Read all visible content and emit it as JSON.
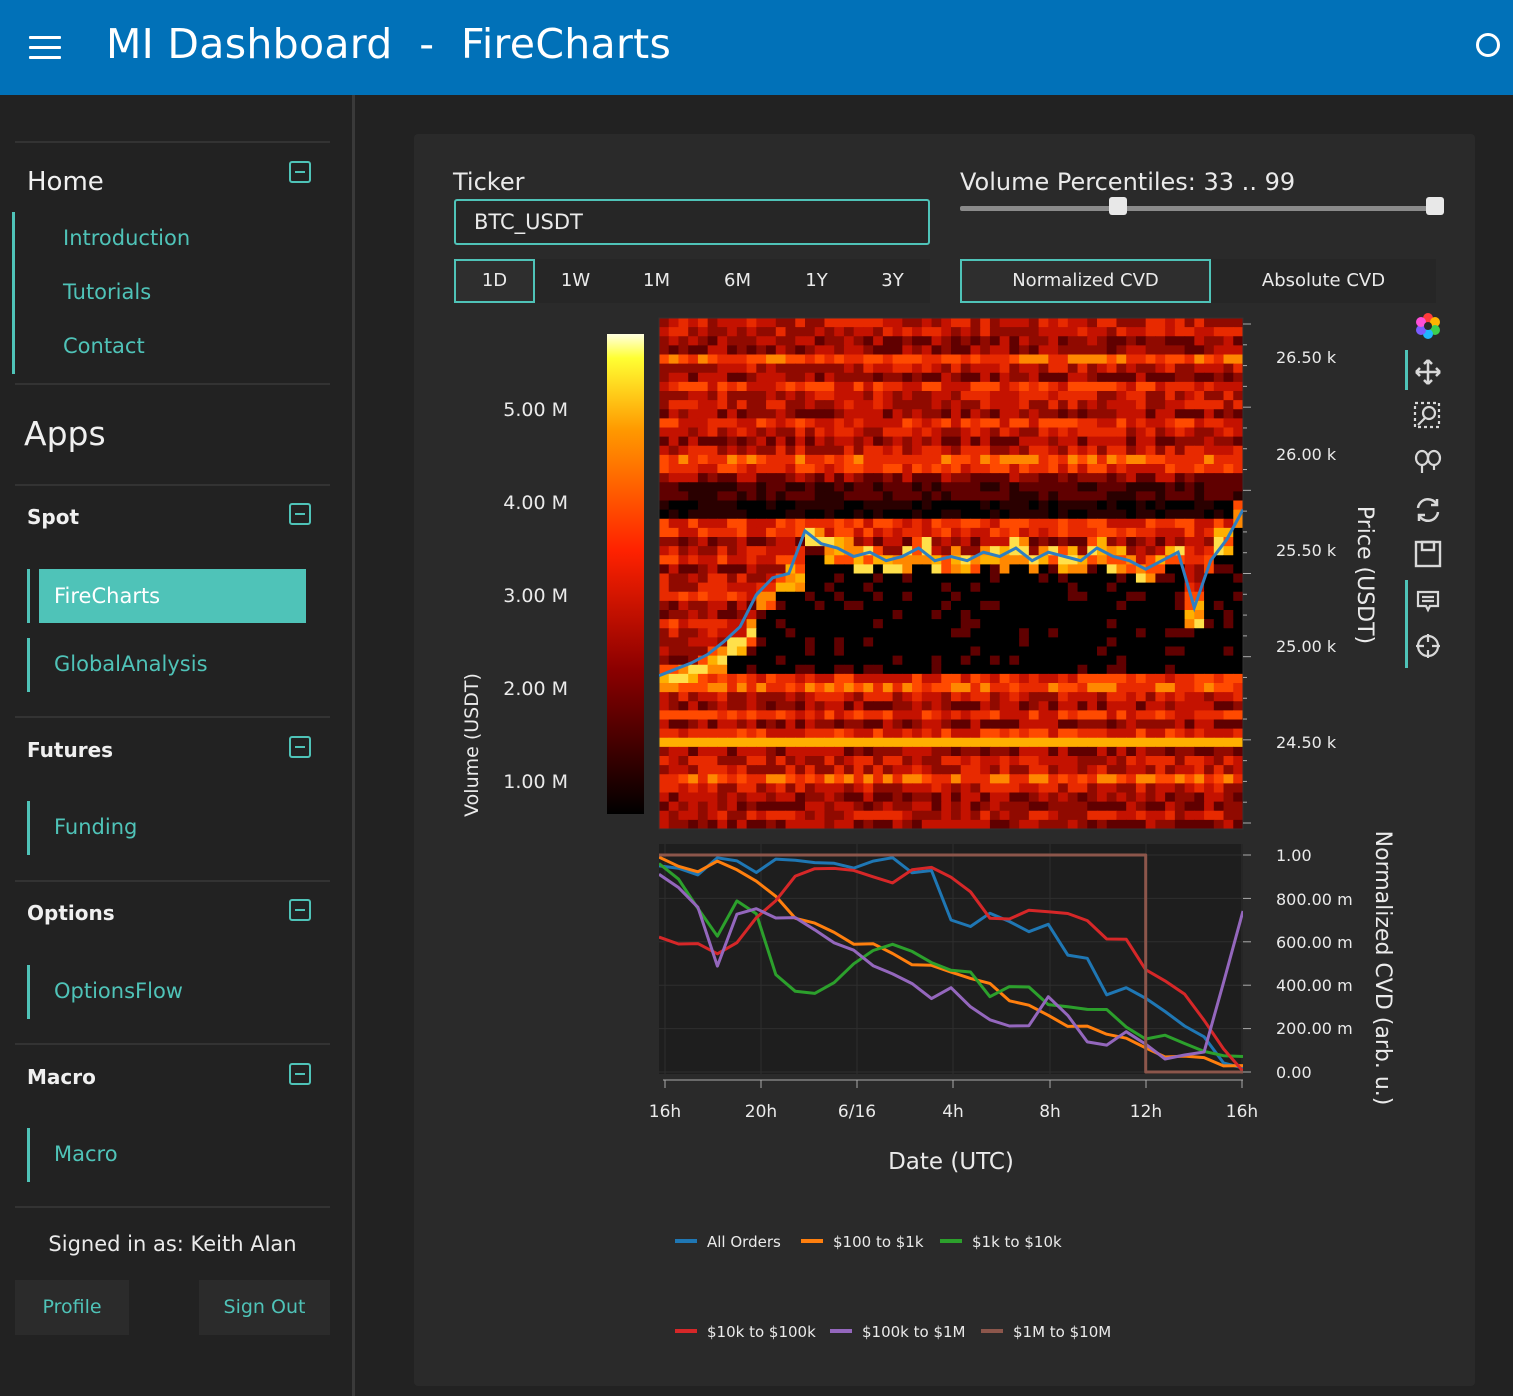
{
  "header": {
    "title": "MI Dashboard  -  FireCharts"
  },
  "sidebar": {
    "home": {
      "title": "Home",
      "items": [
        "Introduction",
        "Tutorials",
        "Contact"
      ]
    },
    "apps_title": "Apps",
    "spot": {
      "title": "Spot",
      "items": [
        "FireCharts",
        "GlobalAnalysis"
      ],
      "active": "FireCharts"
    },
    "futures": {
      "title": "Futures",
      "items": [
        "Funding"
      ]
    },
    "options": {
      "title": "Options",
      "items": [
        "OptionsFlow"
      ]
    },
    "macro": {
      "title": "Macro",
      "items": [
        "Macro"
      ]
    },
    "signed_in": "Signed in as: Keith Alan",
    "profile_label": "Profile",
    "signout_label": "Sign Out"
  },
  "controls": {
    "ticker_label": "Ticker",
    "ticker_value": "BTC_USDT",
    "volume_label": "Volume Percentiles: 33 .. 99",
    "volume_range": [
      33,
      99
    ],
    "timeframes": [
      "1D",
      "1W",
      "1M",
      "6M",
      "1Y",
      "3Y"
    ],
    "timeframe_selected": "1D",
    "cvd_modes": [
      "Normalized CVD",
      "Absolute CVD"
    ],
    "cvd_selected": "Normalized CVD"
  },
  "colors": {
    "accent": "#4fc3b8",
    "topbar": "#0171b8"
  },
  "chart_data": [
    {
      "type": "heatmap",
      "colorbar_label": "Volume (USDT)",
      "colorbar_ticks": [
        "5.00 M",
        "4.00 M",
        "3.00 M",
        "2.00 M",
        "1.00 M"
      ],
      "ylabel": "Price (USDT)",
      "y_ticks": [
        "26.50 k",
        "26.00 k",
        "25.50 k",
        "25.00 k",
        "24.50 k"
      ],
      "ylim": [
        24300,
        26700
      ],
      "price_series": {
        "name": "Price",
        "color": "#2f7fc1",
        "values": [
          25020,
          25050,
          25080,
          25120,
          25180,
          25250,
          25400,
          25480,
          25500,
          25700,
          25640,
          25620,
          25580,
          25600,
          25560,
          25580,
          25620,
          25560,
          25580,
          25560,
          25600,
          25580,
          25620,
          25560,
          25600,
          25580,
          25560,
          25620,
          25580,
          25560,
          25520,
          25560,
          25600,
          25340,
          25560,
          25660,
          25800
        ]
      }
    },
    {
      "type": "line",
      "xlabel": "Date (UTC)",
      "ylabel": "Normalized CVD (arb. u.)",
      "x_ticks": [
        "16h",
        "20h",
        "6/16",
        "4h",
        "8h",
        "12h",
        "16h"
      ],
      "y_ticks": [
        "1.00",
        "800.00 m",
        "600.00 m",
        "400.00 m",
        "200.00 m",
        "0.00"
      ],
      "ylim": [
        0,
        1
      ],
      "series": [
        {
          "name": "All Orders",
          "color": "#1f77b4",
          "values": [
            0.95,
            0.93,
            0.92,
            0.98,
            0.97,
            0.93,
            0.97,
            0.98,
            0.97,
            0.95,
            0.95,
            0.97,
            0.98,
            0.93,
            0.92,
            0.7,
            0.68,
            0.72,
            0.7,
            0.65,
            0.67,
            0.55,
            0.52,
            0.35,
            0.4,
            0.33,
            0.28,
            0.22,
            0.15,
            0.05,
            0.02
          ]
        },
        {
          "name": "$100 to $1k",
          "color": "#ff7f0e",
          "values": [
            0.98,
            0.95,
            0.93,
            0.96,
            0.94,
            0.88,
            0.8,
            0.72,
            0.68,
            0.64,
            0.6,
            0.58,
            0.55,
            0.5,
            0.48,
            0.47,
            0.43,
            0.4,
            0.34,
            0.3,
            0.26,
            0.22,
            0.2,
            0.18,
            0.16,
            0.1,
            0.08,
            0.07,
            0.06,
            0.04,
            0.02
          ]
        },
        {
          "name": "$1k to $10k",
          "color": "#2ca02c",
          "values": [
            0.95,
            0.9,
            0.75,
            0.62,
            0.8,
            0.72,
            0.45,
            0.38,
            0.35,
            0.42,
            0.5,
            0.55,
            0.6,
            0.55,
            0.5,
            0.48,
            0.45,
            0.35,
            0.4,
            0.38,
            0.32,
            0.3,
            0.28,
            0.3,
            0.2,
            0.15,
            0.18,
            0.12,
            0.1,
            0.08,
            0.06
          ]
        },
        {
          "name": "$10k to $100k",
          "color": "#d62728",
          "values": [
            0.62,
            0.6,
            0.58,
            0.55,
            0.6,
            0.7,
            0.8,
            0.9,
            0.93,
            0.95,
            0.92,
            0.9,
            0.88,
            0.92,
            0.95,
            0.9,
            0.82,
            0.72,
            0.7,
            0.74,
            0.75,
            0.72,
            0.7,
            0.62,
            0.6,
            0.48,
            0.42,
            0.35,
            0.25,
            0.1,
            0.0
          ]
        },
        {
          "name": "$100k to $1M",
          "color": "#9467bd",
          "values": [
            0.92,
            0.85,
            0.75,
            0.5,
            0.72,
            0.75,
            0.72,
            0.7,
            0.66,
            0.6,
            0.55,
            0.5,
            0.45,
            0.4,
            0.35,
            0.38,
            0.3,
            0.25,
            0.2,
            0.22,
            0.35,
            0.25,
            0.15,
            0.12,
            0.18,
            0.14,
            0.05,
            0.08,
            0.1,
            0.4,
            0.75
          ]
        },
        {
          "name": "$1M to $10M",
          "color": "#8c564b",
          "values": [
            1.0,
            1.0,
            1.0,
            1.0,
            1.0,
            1.0,
            1.0,
            1.0,
            1.0,
            1.0,
            1.0,
            1.0,
            1.0,
            1.0,
            1.0,
            1.0,
            1.0,
            1.0,
            1.0,
            1.0,
            1.0,
            1.0,
            1.0,
            1.0,
            1.0,
            0.0,
            0.0,
            0.0,
            0.0,
            0.0,
            0.0
          ]
        }
      ]
    }
  ]
}
